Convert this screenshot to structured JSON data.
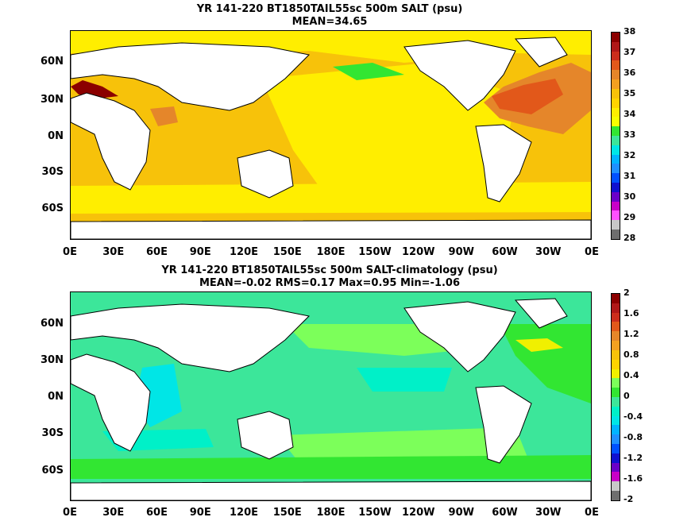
{
  "panels": [
    {
      "title_line1": "YR 141-220 BT1850TAIL55sc 500m SALT (psu)",
      "title_line2": "MEAN=34.65",
      "colorbar": {
        "labels": [
          "38",
          "37",
          "36",
          "35",
          "34",
          "33",
          "32",
          "31",
          "30",
          "29",
          "28"
        ],
        "colors": [
          "#8b0000",
          "#b01818",
          "#cc2d1c",
          "#e2581a",
          "#e5862a",
          "#f3a020",
          "#f7c20a",
          "#ffd400",
          "#ffee00",
          "#f7ff00",
          "#32e632",
          "#3ce69a",
          "#00e6e6",
          "#00b4ff",
          "#1e90ff",
          "#0050ff",
          "#1010d0",
          "#6a00c8",
          "#c800c8",
          "#ff50ff",
          "#c8c8c8",
          "#6e6e6e"
        ]
      }
    },
    {
      "title_line1": "YR 141-220 BT1850TAIL55sc 500m SALT-climatology (psu)",
      "title_line2": "MEAN=-0.02   RMS=0.17   Max=0.95   Min=-1.06",
      "colorbar": {
        "labels": [
          "2",
          "1.6",
          "1.2",
          "0.8",
          "0.4",
          "0",
          "-0.4",
          "-0.8",
          "-1.2",
          "-1.6",
          "-2"
        ],
        "colors": [
          "#8b0000",
          "#b01818",
          "#cc2d1c",
          "#e2581a",
          "#e5862a",
          "#f3a020",
          "#f7c20a",
          "#ffd400",
          "#f0f000",
          "#7cff5a",
          "#32e632",
          "#3ce69a",
          "#00f0c8",
          "#00e6e6",
          "#00b4ff",
          "#1e90ff",
          "#0050ff",
          "#1010d0",
          "#6a00c8",
          "#c800c8",
          "#c8c8c8",
          "#6e6e6e"
        ]
      }
    }
  ],
  "lat_labels": [
    "60N",
    "30N",
    "0N",
    "30S",
    "60S"
  ],
  "lon_labels": [
    "0E",
    "30E",
    "60E",
    "90E",
    "120E",
    "150E",
    "180E",
    "150W",
    "120W",
    "90W",
    "60W",
    "30W",
    "0E"
  ]
}
